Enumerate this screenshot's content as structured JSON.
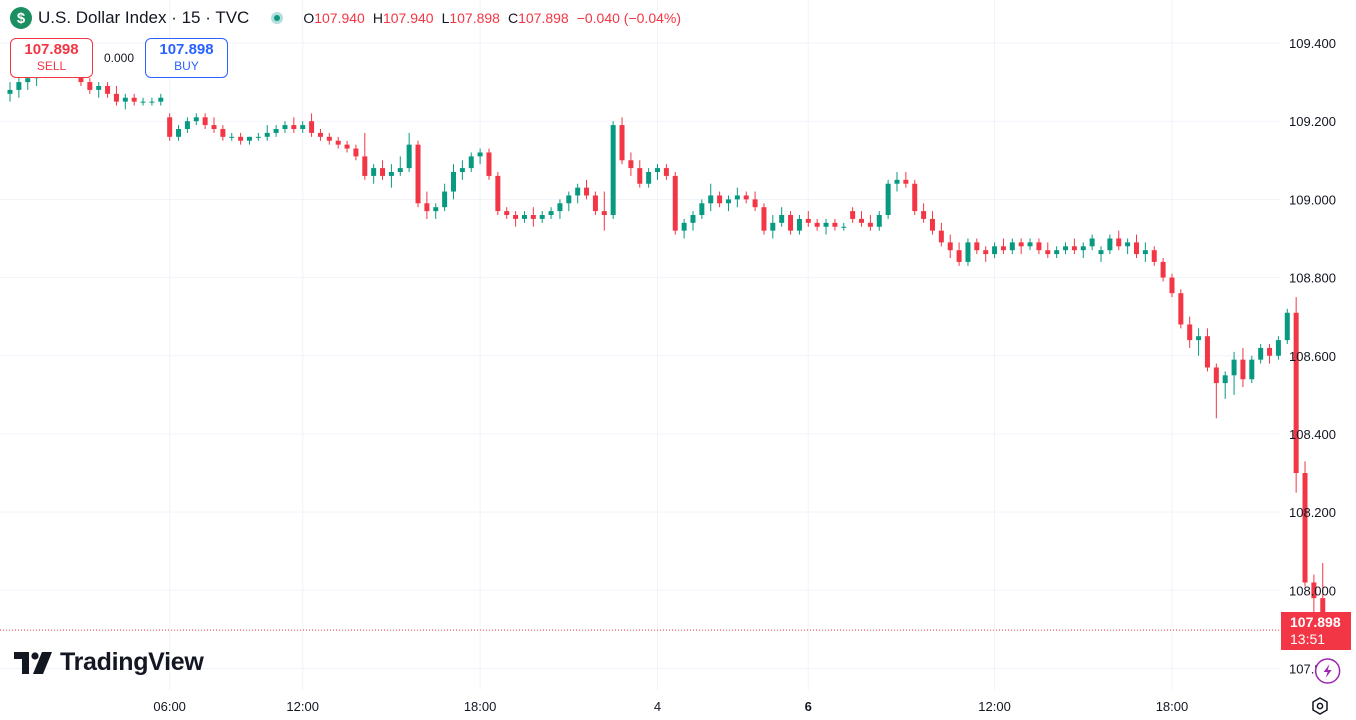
{
  "header": {
    "symbol_icon": "dollar-sign-icon",
    "title": "U.S. Dollar Index · 15 · TVC",
    "market_status": "open",
    "ohlc": {
      "o_label": "O",
      "o": "107.940",
      "h_label": "H",
      "h": "107.940",
      "l_label": "L",
      "l": "107.898",
      "c_label": "C",
      "c": "107.898",
      "change": "−0.040 (−0.04%)"
    }
  },
  "trade": {
    "sell_price": "107.898",
    "sell_label": "SELL",
    "spread": "0.000",
    "buy_price": "107.898",
    "buy_label": "BUY"
  },
  "last_price": {
    "price": "107.898",
    "countdown": "13:51"
  },
  "branding": {
    "logo_text": "TradingView"
  },
  "colors": {
    "up": "#089981",
    "down": "#f23645",
    "grid": "#f0f3fa",
    "buy": "#2962ff"
  },
  "chart_data": {
    "type": "candlestick",
    "interval": "15",
    "y_ticks": [
      "109.400",
      "109.200",
      "109.000",
      "108.800",
      "108.600",
      "108.400",
      "108.200",
      "108.000",
      "107.800"
    ],
    "ylim": [
      107.745,
      109.51
    ],
    "x_ticks": [
      {
        "label": "06:00",
        "bar": 18,
        "bold": false
      },
      {
        "label": "12:00",
        "bar": 33,
        "bold": false
      },
      {
        "label": "18:00",
        "bar": 53,
        "bold": false
      },
      {
        "label": "4",
        "bar": 73,
        "bold": false
      },
      {
        "label": "6",
        "bar": 90,
        "bold": true
      },
      {
        "label": "12:00",
        "bar": 111,
        "bold": false
      },
      {
        "label": "18:00",
        "bar": 131,
        "bold": false
      }
    ],
    "grid": true,
    "last_price_line": 107.898,
    "candles": [
      [
        109.27,
        109.3,
        109.25,
        109.28
      ],
      [
        109.28,
        109.32,
        109.26,
        109.3
      ],
      [
        109.3,
        109.33,
        109.28,
        109.31
      ],
      [
        109.31,
        109.35,
        109.29,
        109.32
      ],
      [
        109.32,
        109.37,
        109.31,
        109.36
      ],
      [
        109.36,
        109.39,
        109.34,
        109.38
      ],
      [
        109.38,
        109.4,
        109.33,
        109.34
      ],
      [
        109.34,
        109.37,
        109.32,
        109.36
      ],
      [
        109.36,
        109.37,
        109.29,
        109.3
      ],
      [
        109.3,
        109.31,
        109.27,
        109.28
      ],
      [
        109.28,
        109.3,
        109.26,
        109.29
      ],
      [
        109.29,
        109.3,
        109.26,
        109.27
      ],
      [
        109.27,
        109.29,
        109.24,
        109.25
      ],
      [
        109.25,
        109.27,
        109.23,
        109.26
      ],
      [
        109.26,
        109.27,
        109.24,
        109.25
      ],
      [
        109.25,
        109.26,
        109.24,
        109.25
      ],
      [
        109.25,
        109.26,
        109.24,
        109.25
      ],
      [
        109.25,
        109.27,
        109.24,
        109.26
      ],
      [
        109.21,
        109.22,
        109.15,
        109.16
      ],
      [
        109.16,
        109.19,
        109.15,
        109.18
      ],
      [
        109.18,
        109.21,
        109.17,
        109.2
      ],
      [
        109.2,
        109.22,
        109.19,
        109.21
      ],
      [
        109.21,
        109.22,
        109.18,
        109.19
      ],
      [
        109.19,
        109.21,
        109.17,
        109.18
      ],
      [
        109.18,
        109.19,
        109.15,
        109.16
      ],
      [
        109.16,
        109.17,
        109.15,
        109.16
      ],
      [
        109.16,
        109.17,
        109.14,
        109.15
      ],
      [
        109.15,
        109.16,
        109.14,
        109.16
      ],
      [
        109.16,
        109.17,
        109.15,
        109.16
      ],
      [
        109.16,
        109.19,
        109.15,
        109.17
      ],
      [
        109.17,
        109.19,
        109.16,
        109.18
      ],
      [
        109.18,
        109.2,
        109.17,
        109.19
      ],
      [
        109.19,
        109.21,
        109.17,
        109.18
      ],
      [
        109.18,
        109.2,
        109.17,
        109.19
      ],
      [
        109.2,
        109.22,
        109.16,
        109.17
      ],
      [
        109.17,
        109.18,
        109.15,
        109.16
      ],
      [
        109.16,
        109.17,
        109.14,
        109.15
      ],
      [
        109.15,
        109.16,
        109.13,
        109.14
      ],
      [
        109.14,
        109.15,
        109.12,
        109.13
      ],
      [
        109.13,
        109.14,
        109.1,
        109.11
      ],
      [
        109.11,
        109.17,
        109.05,
        109.06
      ],
      [
        109.06,
        109.09,
        109.04,
        109.08
      ],
      [
        109.08,
        109.1,
        109.05,
        109.06
      ],
      [
        109.06,
        109.09,
        109.03,
        109.07
      ],
      [
        109.07,
        109.11,
        109.06,
        109.08
      ],
      [
        109.08,
        109.17,
        109.07,
        109.14
      ],
      [
        109.14,
        109.15,
        108.98,
        108.99
      ],
      [
        108.99,
        109.02,
        108.95,
        108.97
      ],
      [
        108.97,
        108.99,
        108.95,
        108.98
      ],
      [
        108.98,
        109.04,
        108.97,
        109.02
      ],
      [
        109.02,
        109.09,
        109.0,
        109.07
      ],
      [
        109.07,
        109.1,
        109.05,
        109.08
      ],
      [
        109.08,
        109.12,
        109.07,
        109.11
      ],
      [
        109.11,
        109.13,
        109.09,
        109.12
      ],
      [
        109.12,
        109.13,
        109.05,
        109.06
      ],
      [
        109.06,
        109.07,
        108.96,
        108.97
      ],
      [
        108.97,
        108.98,
        108.95,
        108.96
      ],
      [
        108.96,
        108.97,
        108.93,
        108.95
      ],
      [
        108.95,
        108.97,
        108.94,
        108.96
      ],
      [
        108.96,
        108.98,
        108.93,
        108.95
      ],
      [
        108.95,
        108.97,
        108.94,
        108.96
      ],
      [
        108.96,
        108.98,
        108.95,
        108.97
      ],
      [
        108.97,
        109.0,
        108.95,
        108.99
      ],
      [
        108.99,
        109.02,
        108.97,
        109.01
      ],
      [
        109.01,
        109.04,
        108.99,
        109.03
      ],
      [
        109.03,
        109.05,
        109.0,
        109.01
      ],
      [
        109.01,
        109.02,
        108.96,
        108.97
      ],
      [
        108.97,
        109.02,
        108.92,
        108.96
      ],
      [
        108.96,
        109.2,
        108.95,
        109.19
      ],
      [
        109.19,
        109.21,
        109.09,
        109.1
      ],
      [
        109.1,
        109.12,
        109.06,
        109.08
      ],
      [
        109.08,
        109.1,
        109.03,
        109.04
      ],
      [
        109.04,
        109.08,
        109.03,
        109.07
      ],
      [
        109.07,
        109.09,
        109.05,
        109.08
      ],
      [
        109.08,
        109.09,
        109.05,
        109.06
      ],
      [
        109.06,
        109.07,
        108.91,
        108.92
      ],
      [
        108.92,
        108.95,
        108.9,
        108.94
      ],
      [
        108.94,
        108.97,
        108.92,
        108.96
      ],
      [
        108.96,
        109.0,
        108.95,
        108.99
      ],
      [
        108.99,
        109.04,
        108.97,
        109.01
      ],
      [
        109.01,
        109.02,
        108.98,
        108.99
      ],
      [
        108.99,
        109.01,
        108.97,
        109.0
      ],
      [
        109.0,
        109.03,
        108.98,
        109.01
      ],
      [
        109.01,
        109.02,
        108.99,
        109.0
      ],
      [
        109.0,
        109.02,
        108.97,
        108.98
      ],
      [
        108.98,
        108.99,
        108.91,
        108.92
      ],
      [
        108.92,
        108.96,
        108.9,
        108.94
      ],
      [
        108.94,
        108.98,
        108.93,
        108.96
      ],
      [
        108.96,
        108.97,
        108.91,
        108.92
      ],
      [
        108.92,
        108.96,
        108.91,
        108.95
      ],
      [
        108.95,
        108.97,
        108.93,
        108.94
      ],
      [
        108.94,
        108.95,
        108.92,
        108.93
      ],
      [
        108.93,
        108.95,
        108.91,
        108.94
      ],
      [
        108.94,
        108.95,
        108.92,
        108.93
      ],
      [
        108.93,
        108.94,
        108.92,
        108.93
      ],
      [
        108.97,
        108.98,
        108.94,
        108.95
      ],
      [
        108.95,
        108.97,
        108.93,
        108.94
      ],
      [
        108.94,
        108.96,
        108.92,
        108.93
      ],
      [
        108.93,
        108.97,
        108.92,
        108.96
      ],
      [
        108.96,
        109.05,
        108.95,
        109.04
      ],
      [
        109.04,
        109.07,
        109.02,
        109.05
      ],
      [
        109.05,
        109.07,
        109.03,
        109.04
      ],
      [
        109.04,
        109.05,
        108.96,
        108.97
      ],
      [
        108.97,
        108.99,
        108.94,
        108.95
      ],
      [
        108.95,
        108.97,
        108.91,
        108.92
      ],
      [
        108.92,
        108.94,
        108.88,
        108.89
      ],
      [
        108.89,
        108.91,
        108.85,
        108.87
      ],
      [
        108.87,
        108.89,
        108.83,
        108.84
      ],
      [
        108.84,
        108.9,
        108.83,
        108.89
      ],
      [
        108.89,
        108.9,
        108.86,
        108.87
      ],
      [
        108.87,
        108.88,
        108.84,
        108.86
      ],
      [
        108.86,
        108.89,
        108.85,
        108.88
      ],
      [
        108.88,
        108.9,
        108.86,
        108.87
      ],
      [
        108.87,
        108.9,
        108.86,
        108.89
      ],
      [
        108.89,
        108.9,
        108.86,
        108.88
      ],
      [
        108.88,
        108.9,
        108.87,
        108.89
      ],
      [
        108.89,
        108.9,
        108.86,
        108.87
      ],
      [
        108.87,
        108.89,
        108.85,
        108.86
      ],
      [
        108.86,
        108.88,
        108.85,
        108.87
      ],
      [
        108.87,
        108.89,
        108.86,
        108.88
      ],
      [
        108.88,
        108.9,
        108.86,
        108.87
      ],
      [
        108.87,
        108.89,
        108.85,
        108.88
      ],
      [
        108.88,
        108.91,
        108.87,
        108.9
      ],
      [
        108.86,
        108.88,
        108.84,
        108.87
      ],
      [
        108.87,
        108.91,
        108.86,
        108.9
      ],
      [
        108.9,
        108.92,
        108.87,
        108.88
      ],
      [
        108.88,
        108.9,
        108.86,
        108.89
      ],
      [
        108.89,
        108.91,
        108.85,
        108.86
      ],
      [
        108.86,
        108.89,
        108.84,
        108.87
      ],
      [
        108.87,
        108.88,
        108.83,
        108.84
      ],
      [
        108.84,
        108.85,
        108.79,
        108.8
      ],
      [
        108.8,
        108.81,
        108.75,
        108.76
      ],
      [
        108.76,
        108.77,
        108.67,
        108.68
      ],
      [
        108.68,
        108.7,
        108.62,
        108.64
      ],
      [
        108.64,
        108.67,
        108.6,
        108.65
      ],
      [
        108.65,
        108.67,
        108.56,
        108.57
      ],
      [
        108.57,
        108.58,
        108.44,
        108.53
      ],
      [
        108.53,
        108.56,
        108.49,
        108.55
      ],
      [
        108.55,
        108.61,
        108.5,
        108.59
      ],
      [
        108.59,
        108.62,
        108.52,
        108.54
      ],
      [
        108.54,
        108.6,
        108.53,
        108.59
      ],
      [
        108.59,
        108.63,
        108.58,
        108.62
      ],
      [
        108.62,
        108.63,
        108.58,
        108.6
      ],
      [
        108.6,
        108.65,
        108.59,
        108.64
      ],
      [
        108.64,
        108.72,
        108.63,
        108.71
      ],
      [
        108.71,
        108.75,
        108.25,
        108.3
      ],
      [
        108.3,
        108.33,
        108.01,
        108.02
      ],
      [
        108.02,
        108.04,
        107.87,
        107.98
      ],
      [
        107.98,
        108.07,
        107.92,
        107.94
      ],
      [
        107.94,
        107.94,
        107.898,
        107.898
      ]
    ]
  }
}
